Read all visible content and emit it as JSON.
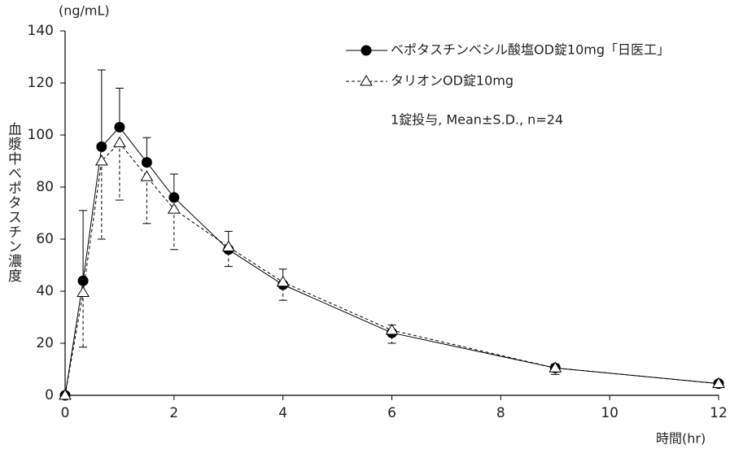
{
  "chart_data": {
    "type": "line",
    "y_unit": "(ng/mL)",
    "y_label": "血漿中ベポタスチン濃度",
    "x_label": "時間(hr)",
    "annotation": "1錠投与, Mean±S.D., n=24",
    "xlim": [
      0,
      12
    ],
    "xticks": [
      0,
      2,
      4,
      6,
      8,
      10,
      12
    ],
    "ylim": [
      0,
      140
    ],
    "yticks": [
      0,
      20,
      40,
      60,
      80,
      100,
      120,
      140
    ],
    "grid": false,
    "x": [
      0,
      0.33,
      0.67,
      1,
      1.5,
      2,
      3,
      4,
      6,
      9,
      12
    ],
    "series": [
      {
        "name": "ベポタスチンベシル酸塩OD錠10mg「日医工」",
        "color": "#000000",
        "marker": "circle",
        "line_style": "solid",
        "error_direction": "up",
        "values": [
          0,
          44,
          95.5,
          103,
          89.5,
          76,
          56,
          42.5,
          24,
          10.5,
          4.5
        ],
        "errors": [
          0,
          27,
          29.5,
          15,
          9.5,
          9,
          7,
          6,
          3,
          1.5,
          0.5
        ]
      },
      {
        "name": "タリオンOD錠10mg",
        "color": "#000000",
        "marker": "triangle-open",
        "line_style": "dashed",
        "error_direction": "down",
        "values": [
          0,
          39.5,
          90,
          97,
          84,
          71.5,
          57,
          43.5,
          25,
          10.5,
          4.5
        ],
        "errors": [
          0,
          21,
          30,
          22,
          18,
          15.5,
          7.5,
          7,
          5,
          2.5,
          0.5
        ]
      }
    ]
  }
}
